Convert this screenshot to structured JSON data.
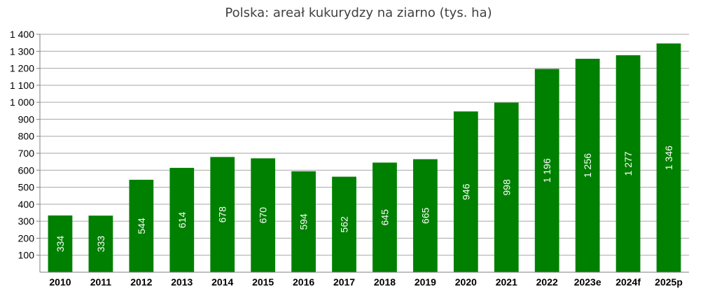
{
  "chart_data": {
    "type": "bar",
    "title": "Polska: areał kukurydzy na ziarno  (tys. ha)",
    "xlabel": "",
    "ylabel": "",
    "categories": [
      "2010",
      "2011",
      "2012",
      "2013",
      "2014",
      "2015",
      "2016",
      "2017",
      "2018",
      "2019",
      "2020",
      "2021",
      "2022",
      "2023e",
      "2024f",
      "2025p"
    ],
    "values": [
      334,
      333,
      544,
      614,
      678,
      670,
      594,
      562,
      645,
      665,
      946,
      998,
      1196,
      1256,
      1277,
      1346
    ],
    "data_labels": [
      "334",
      "333",
      "544",
      "614",
      "678",
      "670",
      "594",
      "562",
      "645",
      "665",
      "946",
      "998",
      "1 196",
      "1 256",
      "1 277",
      "1 346"
    ],
    "ylim": [
      0,
      1400
    ],
    "yticks": [
      100,
      200,
      300,
      400,
      500,
      600,
      700,
      800,
      900,
      1000,
      1100,
      1200,
      1300,
      1400
    ],
    "ytick_labels": [
      "100",
      "200",
      "300",
      "400",
      "500",
      "600",
      "700",
      "800",
      "900",
      "1 000",
      "1 100",
      "1 200",
      "1 300",
      "1 400"
    ],
    "grid": true,
    "legend": "none",
    "bar_color": "#008000",
    "grid_color": "#a6a6a6"
  }
}
